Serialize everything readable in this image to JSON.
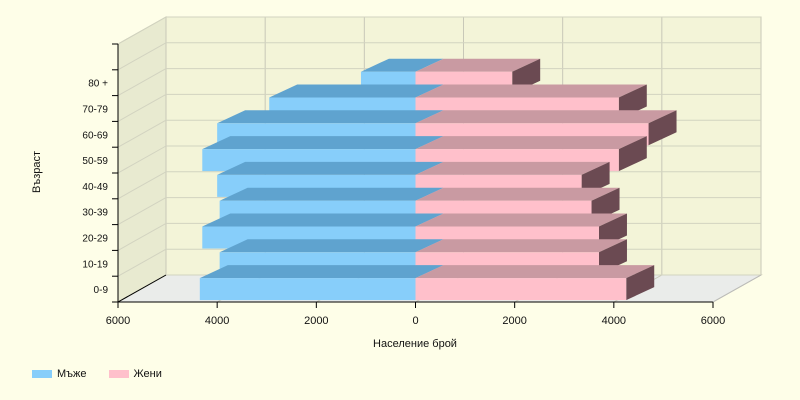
{
  "chart_data": {
    "type": "bar",
    "orientation": "horizontal",
    "style": "3d-population-pyramid",
    "categories": [
      "0-9",
      "10-19",
      "20-29",
      "30-39",
      "40-49",
      "50-59",
      "60-69",
      "70-79",
      "80 +"
    ],
    "series": [
      {
        "name": "Мъже",
        "color": "#87CEFA",
        "values": [
          4350,
          3950,
          4300,
          3950,
          4000,
          4300,
          4000,
          2950,
          1100
        ]
      },
      {
        "name": "Жени",
        "color": "#FFC0CB",
        "values": [
          4250,
          3700,
          3700,
          3550,
          3350,
          4100,
          4700,
          4100,
          1950
        ]
      }
    ],
    "xlabel": "Население брой",
    "ylabel": "Възраст",
    "xlim": [
      -6000,
      6000
    ],
    "xticks": [
      "6000",
      "4000",
      "2000",
      "0",
      "2000",
      "4000",
      "6000"
    ],
    "grid": true,
    "legend_position": "bottom-left"
  }
}
